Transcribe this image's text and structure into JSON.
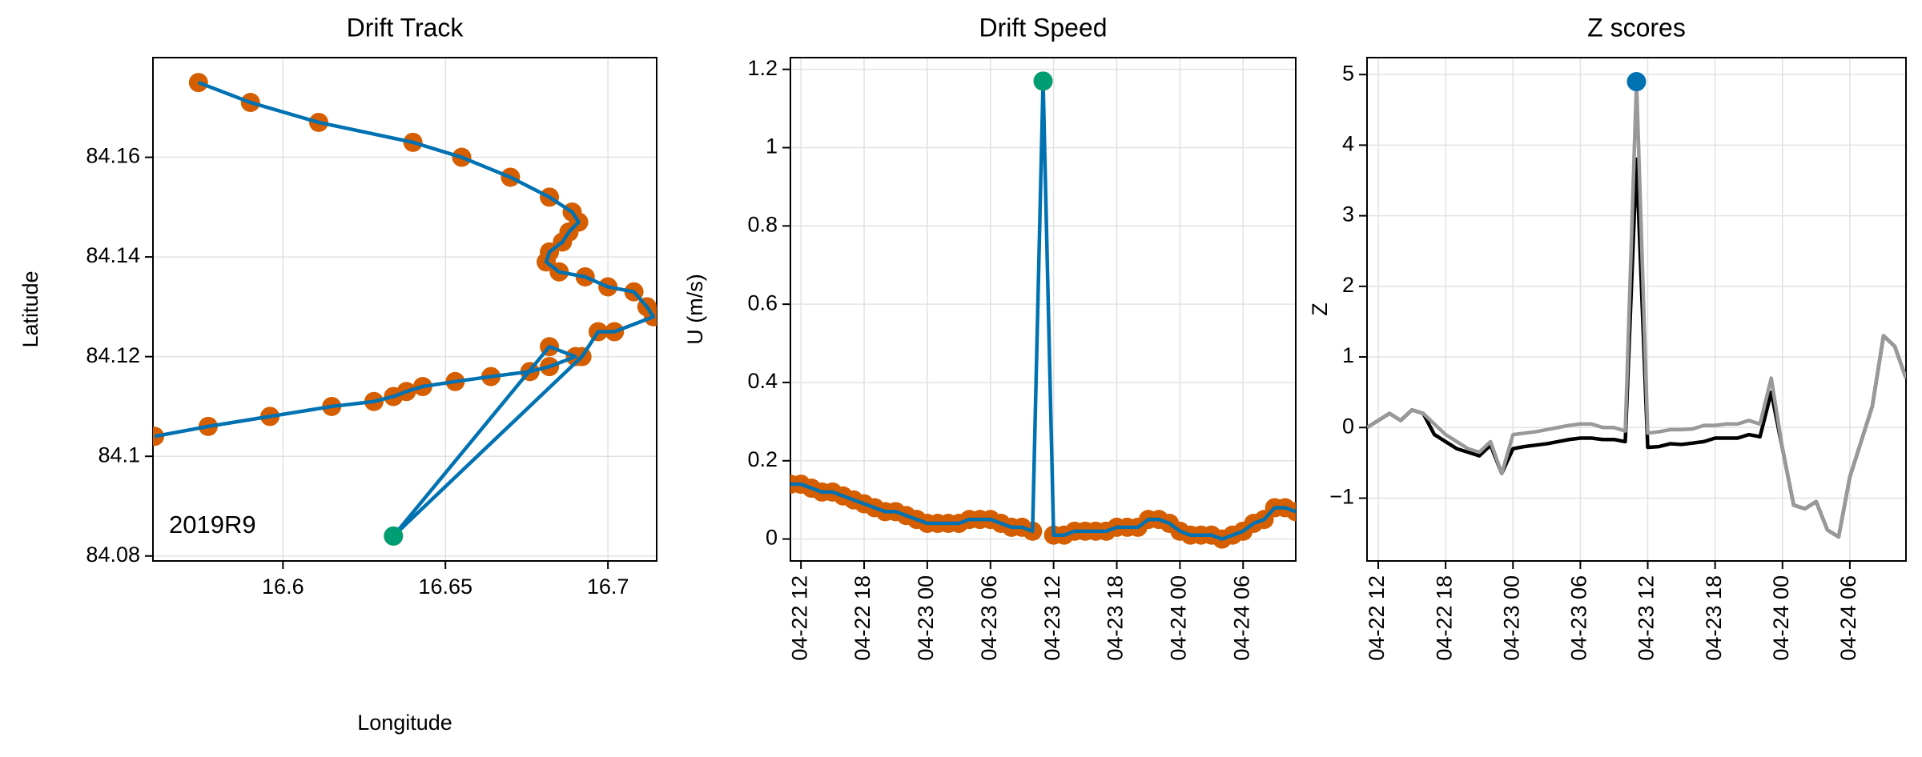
{
  "chart_data": [
    {
      "type": "track",
      "title": "Drift Track",
      "xlabel": "Longitude",
      "ylabel": "Latitude",
      "annotation": "2019R9",
      "x": [
        16.574,
        16.59,
        16.611,
        16.64,
        16.655,
        16.67,
        16.682,
        16.689,
        16.691,
        16.688,
        16.686,
        16.682,
        16.681,
        16.685,
        16.693,
        16.7,
        16.708,
        16.712,
        16.714,
        16.702,
        16.697,
        16.692,
        16.634,
        16.682,
        16.69,
        16.682,
        16.676,
        16.664,
        16.653,
        16.643,
        16.638,
        16.634,
        16.628,
        16.615,
        16.596,
        16.577,
        16.5605
      ],
      "y": [
        84.175,
        84.171,
        84.167,
        84.163,
        84.16,
        84.156,
        84.152,
        84.149,
        84.147,
        84.145,
        84.143,
        84.141,
        84.139,
        84.137,
        84.136,
        84.134,
        84.133,
        84.13,
        84.128,
        84.125,
        84.125,
        84.12,
        84.084,
        84.122,
        84.12,
        84.118,
        84.117,
        84.116,
        84.115,
        84.114,
        84.113,
        84.112,
        84.111,
        84.11,
        84.108,
        84.106,
        84.104
      ],
      "color": "#0072b2",
      "marker_color": "#d55e00",
      "outlier": {
        "x": 16.634,
        "y": 84.084,
        "color": "#009e73"
      },
      "xlim": [
        16.56,
        16.715
      ],
      "ylim": [
        84.079,
        84.18
      ],
      "xticks": [
        16.6,
        16.65,
        16.7
      ],
      "yticks": [
        84.08,
        84.1,
        84.12,
        84.14,
        84.16
      ],
      "grid": true
    },
    {
      "type": "timeseries",
      "title": "Drift Speed",
      "ylabel": "U (m/s)",
      "x": [
        "04-22 11",
        "04-22 12",
        "04-22 13",
        "04-22 14",
        "04-22 15",
        "04-22 16",
        "04-22 17",
        "04-22 18",
        "04-22 19",
        "04-22 20",
        "04-22 21",
        "04-22 22",
        "04-22 23",
        "04-23 00",
        "04-23 01",
        "04-23 02",
        "04-23 03",
        "04-23 04",
        "04-23 05",
        "04-23 06",
        "04-23 07",
        "04-23 08",
        "04-23 09",
        "04-23 10",
        "04-23 11",
        "04-23 12",
        "04-23 13",
        "04-23 14",
        "04-23 15",
        "04-23 16",
        "04-23 17",
        "04-23 18",
        "04-23 19",
        "04-23 20",
        "04-23 21",
        "04-23 22",
        "04-23 23",
        "04-24 00",
        "04-24 01",
        "04-24 02",
        "04-24 03",
        "04-24 04",
        "04-24 05",
        "04-24 06",
        "04-24 07",
        "04-24 08",
        "04-24 09",
        "04-24 10",
        "04-24 11"
      ],
      "series": [
        {
          "color": "#0072b2",
          "marker_color": "#d55e00",
          "values": [
            0.14,
            0.14,
            0.13,
            0.12,
            0.12,
            0.11,
            0.1,
            0.09,
            0.08,
            0.07,
            0.07,
            0.06,
            0.05,
            0.04,
            0.04,
            0.04,
            0.04,
            0.05,
            0.05,
            0.05,
            0.04,
            0.03,
            0.03,
            0.02,
            1.17,
            0.01,
            0.01,
            0.02,
            0.02,
            0.02,
            0.02,
            0.03,
            0.03,
            0.03,
            0.05,
            0.05,
            0.04,
            0.02,
            0.01,
            0.01,
            0.01,
            0.0,
            0.01,
            0.02,
            0.04,
            0.05,
            0.08,
            0.08,
            0.07
          ]
        }
      ],
      "outlier": {
        "x": "04-23 11",
        "y": 1.17,
        "color": "#009e73"
      },
      "xlim": [
        "04-22 11",
        "04-24 11"
      ],
      "ylim": [
        -0.056,
        1.23
      ],
      "xticks": [
        "04-22 12",
        "04-22 18",
        "04-23 00",
        "04-23 06",
        "04-23 12",
        "04-23 18",
        "04-24 00",
        "04-24 06"
      ],
      "yticks": [
        0,
        0.2,
        0.4,
        0.6,
        0.8,
        1,
        1.2
      ],
      "grid": true
    },
    {
      "type": "timeseries",
      "title": "Z scores",
      "ylabel": "Z",
      "x": [
        "04-22 11",
        "04-22 12",
        "04-22 13",
        "04-22 14",
        "04-22 15",
        "04-22 16",
        "04-22 17",
        "04-22 18",
        "04-22 19",
        "04-22 20",
        "04-22 21",
        "04-22 22",
        "04-22 23",
        "04-23 00",
        "04-23 01",
        "04-23 02",
        "04-23 03",
        "04-23 04",
        "04-23 05",
        "04-23 06",
        "04-23 07",
        "04-23 08",
        "04-23 09",
        "04-23 10",
        "04-23 11",
        "04-23 12",
        "04-23 13",
        "04-23 14",
        "04-23 15",
        "04-23 16",
        "04-23 17",
        "04-23 18",
        "04-23 19",
        "04-23 20",
        "04-23 21",
        "04-23 22",
        "04-23 23",
        "04-24 00",
        "04-24 01",
        "04-24 02",
        "04-24 03",
        "04-24 04",
        "04-24 05",
        "04-24 06",
        "04-24 07",
        "04-24 08",
        "04-24 09",
        "04-24 10",
        "04-24 11"
      ],
      "series": [
        {
          "color": "#000000",
          "values": [
            0.0,
            0.1,
            0.2,
            0.1,
            0.25,
            0.2,
            -0.1,
            -0.2,
            -0.3,
            -0.35,
            -0.4,
            -0.25,
            -0.65,
            -0.3,
            -0.27,
            -0.25,
            -0.23,
            -0.2,
            -0.17,
            -0.15,
            -0.15,
            -0.17,
            -0.17,
            -0.2,
            3.8,
            -0.28,
            -0.27,
            -0.23,
            -0.24,
            -0.22,
            -0.2,
            -0.15,
            -0.15,
            -0.15,
            -0.1,
            -0.13,
            0.5,
            -0.3,
            -1.1,
            -1.15,
            -1.05,
            -1.45,
            -1.55,
            -0.7,
            -0.2,
            0.3,
            1.3,
            1.15,
            0.7
          ]
        },
        {
          "color": "#999999",
          "values": [
            0.0,
            0.1,
            0.2,
            0.1,
            0.25,
            0.2,
            0.05,
            -0.1,
            -0.2,
            -0.3,
            -0.35,
            -0.2,
            -0.65,
            -0.1,
            -0.08,
            -0.06,
            -0.03,
            0.0,
            0.03,
            0.05,
            0.05,
            0.0,
            0.0,
            -0.05,
            4.9,
            -0.08,
            -0.06,
            -0.03,
            -0.03,
            -0.02,
            0.03,
            0.03,
            0.05,
            0.05,
            0.1,
            0.05,
            0.7,
            -0.3,
            -1.1,
            -1.15,
            -1.05,
            -1.45,
            -1.55,
            -0.7,
            -0.2,
            0.3,
            1.3,
            1.15,
            0.7
          ]
        }
      ],
      "outlier": {
        "x": "04-23 11",
        "y": 4.9,
        "color": "#0072b2"
      },
      "xlim": [
        "04-22 11",
        "04-24 11"
      ],
      "ylim": [
        -1.89,
        5.24
      ],
      "xticks": [
        "04-22 12",
        "04-22 18",
        "04-23 00",
        "04-23 06",
        "04-23 12",
        "04-23 18",
        "04-24 00",
        "04-24 06"
      ],
      "yticks": [
        {
          "value": -1,
          "label": "−1"
        },
        0,
        1,
        2,
        3,
        4,
        5
      ],
      "grid": true
    }
  ]
}
